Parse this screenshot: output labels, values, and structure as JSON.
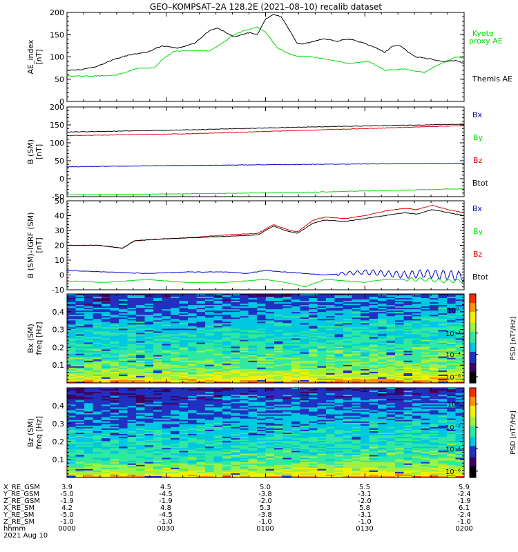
{
  "colors": {
    "black": "#000000",
    "green": "#00dd00",
    "red": "#dd0000",
    "blue": "#0000cc",
    "colormap": [
      "#000000",
      "#400060",
      "#2030c0",
      "#00c8e0",
      "#30e8a0",
      "#a0f040",
      "#f0f000",
      "#ff9000",
      "#f03000"
    ]
  },
  "chart_data": [
    {
      "type": "line",
      "title": "GEO–KOMPSAT–2A 128.2E (2021–08–10) recalib dataset",
      "ylabel": "AE_index\n[nT]",
      "ylim": [
        0,
        200
      ],
      "yticks": [
        "0",
        "50",
        "100",
        "150",
        "200"
      ],
      "series": [
        {
          "name": "Kyoto proxy AE",
          "legend": [
            "Kyoto",
            "proxy AE"
          ],
          "color": "#00dd00",
          "x": [
            0,
            5,
            12,
            18,
            22,
            24,
            27,
            32,
            36,
            39,
            42,
            45,
            48,
            50,
            53,
            57,
            62,
            67,
            71,
            76,
            80,
            85,
            90,
            94,
            98,
            100
          ],
          "y": [
            57,
            57,
            58,
            75,
            75,
            95,
            113,
            114,
            114,
            130,
            150,
            160,
            167,
            155,
            120,
            103,
            100,
            92,
            85,
            90,
            70,
            73,
            65,
            85,
            100,
            98
          ]
        },
        {
          "name": "Themis AE",
          "legend": [
            "Themis AE"
          ],
          "color": "#000000",
          "x": [
            0,
            4,
            8,
            12,
            16,
            20,
            24,
            28,
            32,
            34,
            36,
            38,
            40,
            42,
            44,
            46,
            48,
            50,
            52,
            54,
            56,
            58,
            60,
            62,
            64,
            66,
            68,
            70,
            72,
            75,
            78,
            80,
            82,
            84,
            86,
            88,
            90,
            92,
            94,
            96,
            98,
            100
          ],
          "y": [
            70,
            72,
            80,
            95,
            105,
            110,
            125,
            120,
            130,
            145,
            160,
            165,
            155,
            145,
            150,
            155,
            150,
            185,
            195,
            190,
            160,
            130,
            130,
            135,
            140,
            140,
            135,
            140,
            138,
            130,
            120,
            110,
            125,
            125,
            110,
            100,
            97,
            95,
            90,
            90,
            92,
            85
          ]
        }
      ]
    },
    {
      "type": "line",
      "ylabel": "B (SM)\n[nT]",
      "ylim": [
        -50,
        200
      ],
      "yticks": [
        "-50",
        "0",
        "50",
        "100",
        "150",
        "200"
      ],
      "series": [
        {
          "name": "Bx",
          "color": "#0000cc",
          "x": [
            0,
            30,
            60,
            100
          ],
          "y": [
            33,
            37,
            40,
            43
          ]
        },
        {
          "name": "By",
          "color": "#00dd00",
          "x": [
            0,
            30,
            60,
            100
          ],
          "y": [
            -45,
            -42,
            -38,
            -28
          ]
        },
        {
          "name": "Bz",
          "color": "#dd0000",
          "x": [
            0,
            30,
            60,
            100
          ],
          "y": [
            120,
            125,
            135,
            148
          ]
        },
        {
          "name": "Btot",
          "color": "#000000",
          "x": [
            0,
            30,
            60,
            100
          ],
          "y": [
            130,
            136,
            144,
            152
          ]
        }
      ]
    },
    {
      "type": "line",
      "ylabel": "B (SM)–IGRF (SM)\n[nT]",
      "ylim": [
        -10,
        50
      ],
      "yticks": [
        "-10",
        "0",
        "10",
        "20",
        "30",
        "40",
        "50"
      ],
      "series": [
        {
          "name": "Bx",
          "color": "#0000cc",
          "x": [
            0,
            10,
            20,
            30,
            40,
            45,
            50,
            55,
            60,
            65,
            70,
            75,
            80,
            85,
            90,
            95,
            100
          ],
          "y": [
            3,
            2,
            1,
            2,
            2,
            1,
            3,
            2,
            1,
            0,
            1,
            2,
            1,
            0,
            1,
            0,
            -1
          ]
        },
        {
          "name": "By",
          "color": "#00dd00",
          "x": [
            0,
            10,
            20,
            30,
            40,
            45,
            50,
            55,
            60,
            65,
            70,
            75,
            80,
            85,
            90,
            95,
            100
          ],
          "y": [
            -4,
            -5,
            -3,
            -5,
            -5,
            -4,
            -3,
            -5,
            -8,
            -3,
            -4,
            -5,
            -3,
            -3,
            -3,
            -4,
            -4
          ]
        },
        {
          "name": "Bz",
          "color": "#dd0000",
          "x": [
            0,
            8,
            14,
            17,
            22,
            30,
            40,
            48,
            52,
            55,
            58,
            62,
            65,
            70,
            75,
            80,
            85,
            88,
            92,
            96,
            100
          ],
          "y": [
            20,
            20,
            18,
            23,
            24,
            25,
            27,
            28,
            34,
            31,
            29,
            37,
            39,
            38,
            40,
            43,
            45,
            44,
            47,
            44,
            42
          ]
        },
        {
          "name": "Btot",
          "color": "#000000",
          "x": [
            0,
            8,
            14,
            17,
            22,
            30,
            40,
            48,
            52,
            55,
            58,
            62,
            65,
            70,
            75,
            80,
            85,
            88,
            92,
            96,
            100
          ],
          "y": [
            20,
            20,
            18,
            23,
            24,
            25,
            26,
            27,
            33,
            30,
            28,
            35,
            37,
            36,
            38,
            40,
            42,
            41,
            44,
            42,
            40
          ]
        }
      ]
    },
    {
      "type": "heatmap",
      "ylabel": "Bx (SM)\nfreq [Hz]",
      "ylim": [
        0,
        0.5
      ],
      "yticks": [
        "0.1",
        "0.2",
        "0.3",
        "0.4"
      ],
      "colorbar": {
        "label": "PSD [nT²/Hz]",
        "ticks": [
          "10⁰",
          "10⁻²",
          "10⁻⁴",
          "10⁻⁶"
        ]
      }
    },
    {
      "type": "heatmap",
      "ylabel": "Bz (SM)\nfreq [Hz]",
      "ylim": [
        0,
        0.5
      ],
      "yticks": [
        "0.1",
        "0.2",
        "0.3",
        "0.4"
      ],
      "colorbar": {
        "label": "PSD [nT²/Hz]",
        "ticks": [
          "10⁰",
          "10⁻²",
          "10⁻⁴",
          "10⁻⁶"
        ]
      }
    }
  ],
  "ephemeris": {
    "labels": [
      "X_RE_GSM",
      "Y_RE_GSM",
      "Z_RE_GSM",
      "X_RE_SM",
      "Y_RE_SM",
      "Z_RE_SM",
      "hhmm",
      "2021 Aug 10"
    ],
    "columns": [
      [
        "3.9",
        "-5.0",
        "-1.9",
        "4.2",
        "-5.0",
        "-1.0",
        "0000"
      ],
      [
        "4.5",
        "-4.5",
        "-1.9",
        "4.8",
        "-4.5",
        "-1.0",
        "0030"
      ],
      [
        "5.0",
        "-3.8",
        "-2.0",
        "5.3",
        "-3.8",
        "-1.0",
        "0100"
      ],
      [
        "5.5",
        "-3.1",
        "-2.0",
        "5.8",
        "-3.1",
        "-1.0",
        "0130"
      ],
      [
        "5.9",
        "-2.4",
        "-1.9",
        "6.1",
        "-2.4",
        "-1.0",
        "0200"
      ]
    ]
  }
}
